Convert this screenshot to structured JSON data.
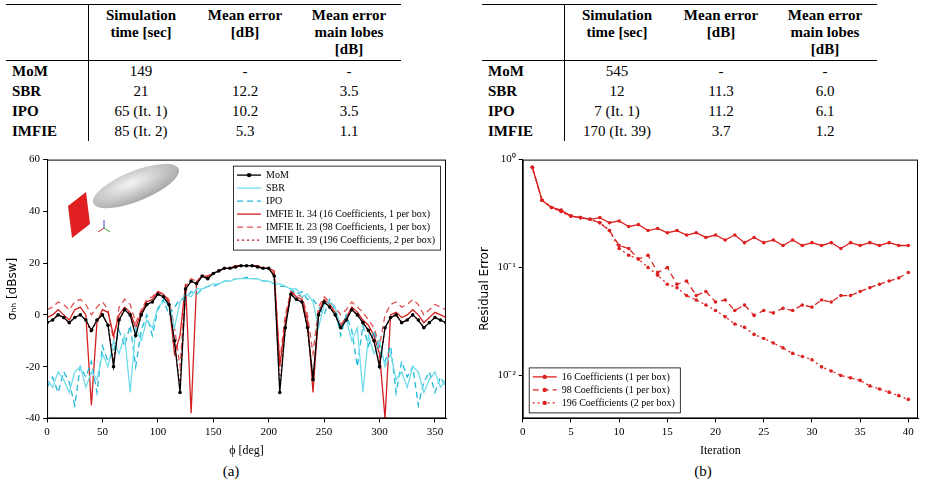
{
  "tables": [
    {
      "columns": [
        "Simulation time [sec]",
        "Mean error [dB]",
        "Mean error main lobes [dB]"
      ],
      "rows": [
        {
          "label": "MoM",
          "cells": [
            "149",
            "-",
            "-"
          ]
        },
        {
          "label": "SBR",
          "cells": [
            "21",
            "12.2",
            "3.5"
          ]
        },
        {
          "label": "IPO",
          "cells": [
            "65 (It. 1)",
            "10.2",
            "3.5"
          ]
        },
        {
          "label": "IMFIE",
          "cells": [
            "85 (It. 2)",
            "5.3",
            "1.1"
          ]
        }
      ]
    },
    {
      "columns": [
        "Simulation time [sec]",
        "Mean error [dB]",
        "Mean error main lobes [dB]"
      ],
      "rows": [
        {
          "label": "MoM",
          "cells": [
            "545",
            "-",
            "-"
          ]
        },
        {
          "label": "SBR",
          "cells": [
            "12",
            "11.3",
            "6.0"
          ]
        },
        {
          "label": "IPO",
          "cells": [
            "7 (It. 1)",
            "11.2",
            "6.1"
          ]
        },
        {
          "label": "IMFIE",
          "cells": [
            "170 (It. 39)",
            "3.7",
            "1.2"
          ]
        }
      ]
    }
  ],
  "chart_data": [
    {
      "type": "line",
      "caption": "(a)",
      "x_label": "ϕ [deg]",
      "y_label": "σₕₕ [dBsw]",
      "x": [
        0,
        5,
        10,
        15,
        20,
        25,
        30,
        35,
        40,
        45,
        50,
        55,
        60,
        65,
        70,
        75,
        80,
        85,
        90,
        95,
        100,
        105,
        110,
        115,
        120,
        125,
        130,
        135,
        140,
        145,
        150,
        155,
        160,
        165,
        170,
        175,
        180,
        185,
        190,
        195,
        200,
        205,
        210,
        215,
        220,
        225,
        230,
        235,
        240,
        245,
        250,
        255,
        260,
        265,
        270,
        275,
        280,
        285,
        290,
        295,
        300,
        305,
        310,
        315,
        320,
        325,
        330,
        335,
        340,
        345,
        350,
        355,
        360
      ],
      "series": [
        {
          "name": "MoM",
          "color": "#000000",
          "line_style": "solid",
          "marker": "circle",
          "values": [
            -3,
            -2,
            0,
            -1,
            -3,
            -1,
            0,
            -2,
            -6,
            -2,
            0,
            -4,
            -20,
            -2,
            2,
            0,
            -8,
            0,
            4,
            5,
            8,
            7,
            4,
            -10,
            -30,
            10,
            13,
            12,
            15,
            14,
            16,
            17,
            18,
            18,
            18.5,
            19,
            19,
            19,
            18.5,
            18,
            18,
            15,
            -30,
            -5,
            8,
            6,
            5,
            -5,
            -25,
            0,
            5,
            3,
            0,
            -5,
            -2,
            2,
            0,
            -3,
            -6,
            -10,
            -20,
            -5,
            -1,
            0,
            -3,
            -2,
            0,
            -2,
            -5,
            -3,
            -1,
            -2,
            -3
          ]
        },
        {
          "name": "SBR",
          "color": "#70dcea",
          "line_style": "solid",
          "marker": "none",
          "values": [
            -25,
            -28,
            -22,
            -25,
            -30,
            -22,
            -20,
            -28,
            -22,
            -25,
            -15,
            -20,
            -10,
            -15,
            -8,
            -30,
            -5,
            -10,
            -2,
            -5,
            3,
            5,
            4,
            -5,
            5,
            8,
            7,
            10,
            10,
            11,
            12,
            12,
            13,
            13,
            14,
            14,
            14,
            14,
            14,
            13,
            13,
            12,
            12,
            11,
            10,
            10,
            7,
            8,
            5,
            -5,
            4,
            5,
            3,
            -5,
            -2,
            -10,
            -5,
            -30,
            -8,
            -15,
            -10,
            -20,
            -15,
            -25,
            -22,
            -28,
            -20,
            -22,
            -30,
            -25,
            -22,
            -28,
            -25
          ]
        },
        {
          "name": "IPO",
          "color": "#20b8d8",
          "line_style": "dashed",
          "marker": "none",
          "values": [
            -28,
            -24,
            -30,
            -22,
            -26,
            -35,
            -20,
            -24,
            -18,
            -30,
            -12,
            -18,
            -14,
            -6,
            -12,
            -4,
            -20,
            -6,
            0,
            -8,
            2,
            6,
            0,
            3,
            6,
            6,
            9,
            8,
            10,
            11,
            11,
            12,
            13,
            13,
            14,
            14,
            14.5,
            14,
            14,
            13,
            13,
            12,
            11,
            11,
            10,
            8,
            9,
            6,
            6,
            3,
            0,
            6,
            2,
            -8,
            0,
            -6,
            -20,
            -4,
            -12,
            -6,
            -14,
            -18,
            -12,
            -30,
            -18,
            -24,
            -20,
            -35,
            -26,
            -22,
            -30,
            -24,
            -28
          ]
        },
        {
          "name": "IMFIE It. 34 (16 Coefficients, 1 per box)",
          "color": "#d42020",
          "line_style": "solid",
          "marker": "none",
          "values": [
            -1,
            0,
            2,
            0,
            -2,
            2,
            3,
            0,
            -35,
            -3,
            2,
            1,
            -8,
            0,
            3,
            1,
            -5,
            1,
            5,
            6,
            9,
            8,
            5,
            -15,
            -8,
            12,
            -38,
            13,
            15,
            15,
            16,
            17,
            18,
            18,
            19,
            19,
            19,
            19,
            19,
            18,
            18,
            17,
            -20,
            -3,
            9,
            7,
            6,
            -2,
            -30,
            1,
            6,
            4,
            1,
            -4,
            -1,
            3,
            1,
            -2,
            -4,
            -8,
            -15,
            -40,
            0,
            1,
            -1,
            0,
            2,
            0,
            -3,
            -1,
            1,
            0,
            -1
          ]
        },
        {
          "name": "IMFIE It. 23 (98 Coefficients, 1 per box)",
          "color": "#e05050",
          "line_style": "dashed",
          "marker": "none",
          "values": [
            2,
            3,
            5,
            4,
            2,
            5,
            6,
            4,
            0,
            3,
            5,
            2,
            -10,
            3,
            6,
            4,
            -3,
            2,
            6,
            7,
            9,
            8,
            6,
            -5,
            -20,
            11,
            14,
            13,
            15,
            15,
            16,
            17,
            18,
            18,
            19,
            19,
            19,
            19,
            19,
            18,
            18,
            16,
            -18,
            0,
            9,
            8,
            7,
            0,
            -15,
            3,
            7,
            5,
            3,
            0,
            2,
            5,
            3,
            1,
            -2,
            -5,
            -12,
            0,
            4,
            5,
            3,
            4,
            6,
            4,
            0,
            2,
            4,
            3,
            2
          ]
        },
        {
          "name": "IMFIE It. 39 (196 Coefficients, 2 per box)",
          "color": "#b01010",
          "line_style": "dotted",
          "marker": "none",
          "values": [
            -3,
            -2,
            0,
            -1,
            -3,
            -1,
            0,
            -2,
            -7,
            -2,
            0,
            -4,
            -18,
            -2,
            2,
            0,
            -8,
            0,
            4,
            5,
            8,
            7,
            4,
            -11,
            -28,
            10,
            13,
            12,
            15,
            14,
            16,
            17,
            18,
            18,
            18.5,
            19,
            19,
            19,
            18.5,
            18,
            18,
            15,
            -28,
            -5,
            8,
            6,
            5,
            -5,
            -24,
            0,
            5,
            3,
            0,
            -5,
            -2,
            2,
            0,
            -3,
            -6,
            -10,
            -19,
            -5,
            -1,
            0,
            -3,
            -2,
            0,
            -2,
            -5,
            -3,
            -1,
            -2,
            -3
          ]
        }
      ],
      "xlim": [
        0,
        360
      ],
      "xticks": [
        0,
        50,
        100,
        150,
        200,
        250,
        300,
        350
      ],
      "ylim": [
        -40,
        60
      ],
      "yticks": [
        -40,
        -20,
        0,
        20,
        40,
        60
      ],
      "grid": false,
      "legend": "upper right"
    },
    {
      "type": "line",
      "caption": "(b)",
      "x_label": "Iteration",
      "y_label": "Residual Error",
      "log": "y",
      "x": [
        1,
        2,
        3,
        4,
        5,
        6,
        7,
        8,
        9,
        10,
        11,
        12,
        13,
        14,
        15,
        16,
        17,
        18,
        19,
        20,
        21,
        22,
        23,
        24,
        25,
        26,
        27,
        28,
        29,
        30,
        31,
        32,
        33,
        34,
        35,
        36,
        37,
        38,
        39,
        40
      ],
      "series": [
        {
          "name": "16 Coefficients (1 per box)",
          "color": "#dd2222",
          "line_style": "solid",
          "marker": "circle",
          "values": [
            0.85,
            0.42,
            0.36,
            0.34,
            0.3,
            0.29,
            0.28,
            0.29,
            0.26,
            0.27,
            0.24,
            0.25,
            0.22,
            0.23,
            0.21,
            0.22,
            0.2,
            0.21,
            0.19,
            0.2,
            0.18,
            0.2,
            0.17,
            0.19,
            0.17,
            0.18,
            0.16,
            0.18,
            0.16,
            0.17,
            0.16,
            0.17,
            0.15,
            0.17,
            0.16,
            0.17,
            0.16,
            0.17,
            0.16,
            0.16
          ]
        },
        {
          "name": "98 Coefficients (1 per box)",
          "color": "#dd2222",
          "line_style": "dashed",
          "marker": "circle",
          "values": [
            0.85,
            0.42,
            0.36,
            0.33,
            0.3,
            0.29,
            0.28,
            0.26,
            0.22,
            0.16,
            0.15,
            0.12,
            0.13,
            0.09,
            0.1,
            0.07,
            0.075,
            0.055,
            0.06,
            0.048,
            0.05,
            0.04,
            0.045,
            0.036,
            0.04,
            0.038,
            0.042,
            0.04,
            0.045,
            0.043,
            0.05,
            0.048,
            0.055,
            0.055,
            0.06,
            0.065,
            0.07,
            0.075,
            0.08,
            0.09
          ]
        },
        {
          "name": "196 Coefficients (2 per box)",
          "color": "#dd2222",
          "line_style": "dotted",
          "marker": "circle",
          "values": [
            0.85,
            0.42,
            0.36,
            0.33,
            0.3,
            0.29,
            0.28,
            0.26,
            0.22,
            0.15,
            0.13,
            0.12,
            0.1,
            0.085,
            0.07,
            0.065,
            0.055,
            0.05,
            0.045,
            0.04,
            0.035,
            0.03,
            0.028,
            0.024,
            0.022,
            0.02,
            0.018,
            0.016,
            0.015,
            0.014,
            0.012,
            0.011,
            0.01,
            0.0095,
            0.009,
            0.008,
            0.0075,
            0.007,
            0.0065,
            0.006
          ]
        }
      ],
      "xlim": [
        0,
        41
      ],
      "xticks": [
        0,
        5,
        10,
        15,
        20,
        25,
        30,
        35,
        40
      ],
      "ylim": [
        0.004,
        1
      ],
      "yticks": [
        {
          "value": 0.01,
          "label": "10⁻²"
        },
        {
          "value": 0.1,
          "label": "10⁻¹"
        },
        {
          "value": 1,
          "label": "10⁰"
        }
      ],
      "grid": false,
      "legend": "lower left"
    }
  ]
}
